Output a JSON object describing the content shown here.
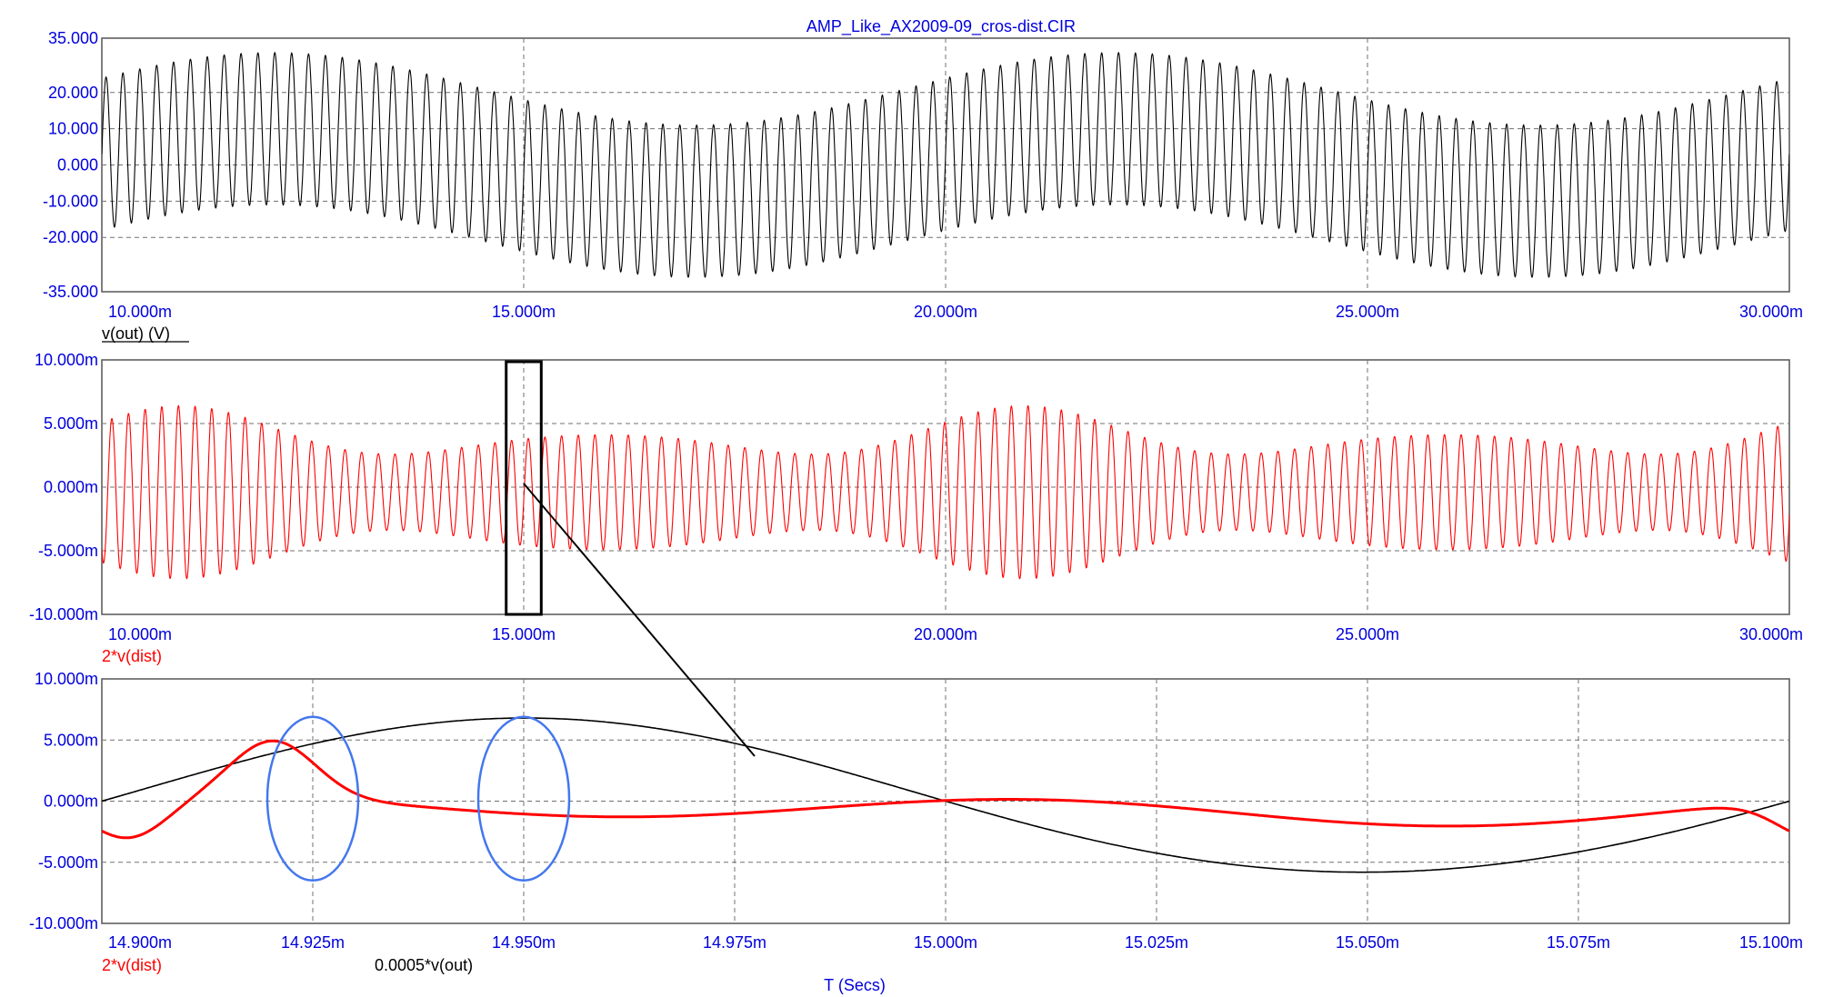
{
  "title": "AMP_Like_AX2009-09_cros-dist.CIR",
  "xaxis_label": "T (Secs)",
  "colors": {
    "ticks": "#0000dd",
    "vout": "#000000",
    "dist": "#ff0000",
    "highlight": "#4477ee",
    "zoom_box": "#000000"
  },
  "chart_data": [
    {
      "type": "line",
      "xlim": [
        0.01,
        0.03
      ],
      "ylim": [
        -35,
        35
      ],
      "yticks": [
        35,
        20,
        10,
        0,
        -10,
        -20,
        -35
      ],
      "ytick_labels": [
        "35.000",
        "20.000",
        "10.000",
        "0.000",
        "-10.000",
        "-20.000",
        "-35.000"
      ],
      "xticks": [
        0.01,
        0.015,
        0.02,
        0.025,
        0.03
      ],
      "xtick_labels": [
        "10.000m",
        "15.000m",
        "20.000m",
        "25.000m",
        "30.000m"
      ],
      "grid": true,
      "series": [
        {
          "name": "v(out) (V)",
          "color": "#000000",
          "model": {
            "kind": "fast_oscillation_band",
            "baseline_amplitude": 10,
            "baseline_frequency_hz": 100,
            "carrier_amplitude": 21,
            "carrier_frequency_hz": 5000,
            "baseline_phase_rad": 0.3
          }
        }
      ],
      "legend": [
        "v(out) (V)"
      ]
    },
    {
      "type": "line",
      "xlim": [
        0.01,
        0.03
      ],
      "ylim": [
        -0.01,
        0.01
      ],
      "yticks": [
        0.01,
        0.005,
        0,
        -0.005,
        -0.01
      ],
      "ytick_labels": [
        "10.000m",
        "5.000m",
        "0.000m",
        "-5.000m",
        "-10.000m"
      ],
      "xticks": [
        0.01,
        0.015,
        0.02,
        0.025,
        0.03
      ],
      "xtick_labels": [
        "10.000m",
        "15.000m",
        "20.000m",
        "25.000m",
        "30.000m"
      ],
      "grid": true,
      "zoom_box_x": [
        0.0149,
        0.0151
      ],
      "series": [
        {
          "name": "2*v(dist)",
          "color": "#ff0000",
          "model": {
            "kind": "modulated_band",
            "band_center": -0.0004,
            "band_half_width_min": 0.003,
            "band_half_width_max": 0.0068,
            "carrier_frequency_hz": 5000,
            "modulation_frequency_hz": 200
          }
        }
      ],
      "legend": [
        "2*v(dist)"
      ]
    },
    {
      "type": "line",
      "xlim": [
        0.0149,
        0.0151
      ],
      "ylim": [
        -0.01,
        0.01
      ],
      "yticks": [
        0.01,
        0.005,
        0,
        -0.005,
        -0.01
      ],
      "ytick_labels": [
        "10.000m",
        "5.000m",
        "0.000m",
        "-5.000m",
        "-10.000m"
      ],
      "xticks": [
        0.0149,
        0.014925,
        0.01495,
        0.014975,
        0.015,
        0.015025,
        0.01505,
        0.015075,
        0.0151
      ],
      "xtick_labels": [
        "14.900m",
        "14.925m",
        "14.950m",
        "14.975m",
        "15.000m",
        "15.025m",
        "15.050m",
        "15.075m",
        "15.100m"
      ],
      "grid": true,
      "highlight_ellipses_x": [
        0.014925,
        0.01495
      ],
      "series": [
        {
          "name": "0.0005*v(out)",
          "color": "#000000",
          "model": {
            "kind": "sine",
            "amplitude_min": 0.0058,
            "amplitude_max": 0.0068,
            "frequency_hz": 5000,
            "phase_rad": 0.0
          }
        },
        {
          "name": "2*v(dist)",
          "color": "#ff0000",
          "model": {
            "kind": "crossover_distortion",
            "peaks": [
              0.0015,
              0.0049
            ],
            "troughs": [
              -0.0025,
              -0.0034
            ],
            "frequency_hz": 10000
          }
        }
      ],
      "legend": [
        "2*v(dist)",
        "0.0005*v(out)"
      ]
    }
  ]
}
